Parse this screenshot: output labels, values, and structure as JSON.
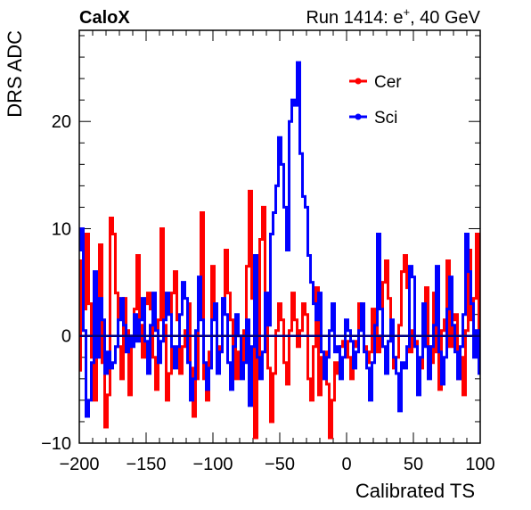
{
  "header": {
    "left_label": "CaloX",
    "right_label_prefix": "Run 1414: e",
    "right_label_sup": "+",
    "right_label_suffix": ", 40 GeV"
  },
  "chart_data": {
    "type": "line",
    "xlabel": "Calibrated TS",
    "ylabel": "DRS ADC",
    "xlim": [
      -200,
      100
    ],
    "ylim": [
      -10,
      28.5
    ],
    "x_ticks": [
      -200,
      -150,
      -100,
      -50,
      0,
      50,
      100
    ],
    "x_tick_labels": [
      "−200",
      "−150",
      "−100",
      "−50",
      "0",
      "50",
      "100"
    ],
    "y_ticks": [
      -10,
      0,
      10,
      20
    ],
    "y_tick_labels": [
      "−10",
      "0",
      "10",
      "20"
    ],
    "reference_line_y": 0,
    "legend_position": "top-right",
    "series": [
      {
        "name": "Cer",
        "color": "#ff0000",
        "step": true,
        "points": [
          [
            -200,
            -3.2
          ],
          [
            -198,
            7.0
          ],
          [
            -196,
            2.5
          ],
          [
            -194,
            9.5
          ],
          [
            -192,
            3.0
          ],
          [
            -190,
            -2.0
          ],
          [
            -188,
            -6.0
          ],
          [
            -186,
            1.0
          ],
          [
            -184,
            8.5
          ],
          [
            -182,
            -2.5
          ],
          [
            -180,
            -8.5
          ],
          [
            -178,
            -5.5
          ],
          [
            -176,
            11.0
          ],
          [
            -174,
            9.5
          ],
          [
            -172,
            4.0
          ],
          [
            -170,
            -1.0
          ],
          [
            -168,
            -4.0
          ],
          [
            -166,
            3.5
          ],
          [
            -164,
            0.5
          ],
          [
            -162,
            -5.5
          ],
          [
            -160,
            -0.5
          ],
          [
            -158,
            2.5
          ],
          [
            -156,
            7.5
          ],
          [
            -154,
            1.0
          ],
          [
            -152,
            -2.0
          ],
          [
            -150,
            3.0
          ],
          [
            -148,
            4.0
          ],
          [
            -146,
            2.5
          ],
          [
            -144,
            -2.0
          ],
          [
            -142,
            -5.0
          ],
          [
            -140,
            1.5
          ],
          [
            -138,
            10.0
          ],
          [
            -136,
            1.0
          ],
          [
            -134,
            -6.0
          ],
          [
            -132,
            -3.5
          ],
          [
            -130,
            4.0
          ],
          [
            -128,
            6.0
          ],
          [
            -126,
            1.5
          ],
          [
            -124,
            -3.5
          ],
          [
            -122,
            -1.0
          ],
          [
            -120,
            0.5
          ],
          [
            -118,
            3.0
          ],
          [
            -116,
            -3.0
          ],
          [
            -114,
            -7.5
          ],
          [
            -112,
            -4.0
          ],
          [
            -110,
            2.0
          ],
          [
            -108,
            11.5
          ],
          [
            -106,
            -4.0
          ],
          [
            -104,
            -6.0
          ],
          [
            -102,
            -1.5
          ],
          [
            -100,
            6.5
          ],
          [
            -98,
            2.0
          ],
          [
            -96,
            -2.5
          ],
          [
            -94,
            -1.0
          ],
          [
            -92,
            2.5
          ],
          [
            -90,
            8.0
          ],
          [
            -88,
            4.0
          ],
          [
            -86,
            1.5
          ],
          [
            -84,
            -1.0
          ],
          [
            -82,
            -4.0
          ],
          [
            -80,
            -1.5
          ],
          [
            -78,
            -3.5
          ],
          [
            -76,
            0.5
          ],
          [
            -74,
            6.5
          ],
          [
            -72,
            13.5
          ],
          [
            -70,
            3.5
          ],
          [
            -68,
            -9.5
          ],
          [
            -66,
            -2.0
          ],
          [
            -64,
            9.0
          ],
          [
            -62,
            12.0
          ],
          [
            -60,
            4.0
          ],
          [
            -58,
            -3.0
          ],
          [
            -56,
            -8.0
          ],
          [
            -54,
            -3.5
          ],
          [
            -52,
            0.5
          ],
          [
            -50,
            3.0
          ],
          [
            -48,
            1.5
          ],
          [
            -46,
            -2.5
          ],
          [
            -44,
            -4.5
          ],
          [
            -42,
            0.5
          ],
          [
            -40,
            4.0
          ],
          [
            -38,
            1.5
          ],
          [
            -36,
            -1.0
          ],
          [
            -34,
            0.5
          ],
          [
            -32,
            3.0
          ],
          [
            -30,
            2.0
          ],
          [
            -28,
            -4.0
          ],
          [
            -26,
            -6.0
          ],
          [
            -24,
            -1.0
          ],
          [
            -22,
            4.5
          ],
          [
            -20,
            -5.5
          ],
          [
            -18,
            -2.0
          ],
          [
            -16,
            -1.5
          ],
          [
            -14,
            -4.5
          ],
          [
            -12,
            -9.5
          ],
          [
            -10,
            -6.0
          ],
          [
            -8,
            -2.5
          ],
          [
            -6,
            -3.5
          ],
          [
            -4,
            -1.0
          ],
          [
            -2,
            -0.5
          ],
          [
            0,
            -0.5
          ],
          [
            2,
            -2.0
          ],
          [
            4,
            -4.0
          ],
          [
            6,
            -1.0
          ],
          [
            8,
            -0.5
          ],
          [
            10,
            3.0
          ],
          [
            12,
            2.0
          ],
          [
            14,
            -1.0
          ],
          [
            16,
            -2.5
          ],
          [
            18,
            -1.5
          ],
          [
            20,
            2.5
          ],
          [
            22,
            1.0
          ],
          [
            24,
            -1.5
          ],
          [
            26,
            0.0
          ],
          [
            28,
            5.0
          ],
          [
            30,
            7.0
          ],
          [
            32,
            3.5
          ],
          [
            34,
            0.5
          ],
          [
            36,
            -3.0
          ],
          [
            38,
            -2.0
          ],
          [
            40,
            1.0
          ],
          [
            42,
            6.0
          ],
          [
            44,
            7.5
          ],
          [
            46,
            4.5
          ],
          [
            48,
            -1.5
          ],
          [
            50,
            0.5
          ],
          [
            52,
            -0.5
          ],
          [
            54,
            -4.5
          ],
          [
            56,
            -3.0
          ],
          [
            58,
            -0.5
          ],
          [
            60,
            4.5
          ],
          [
            62,
            -1.0
          ],
          [
            64,
            -2.5
          ],
          [
            66,
            4.0
          ],
          [
            68,
            -1.5
          ],
          [
            70,
            -5.0
          ],
          [
            72,
            0.5
          ],
          [
            74,
            1.5
          ],
          [
            76,
            7.0
          ],
          [
            78,
            -1.0
          ],
          [
            80,
            1.5
          ],
          [
            82,
            2.0
          ],
          [
            84,
            -4.0
          ],
          [
            86,
            -2.0
          ],
          [
            88,
            -5.5
          ],
          [
            90,
            0.5
          ],
          [
            92,
            8.0
          ],
          [
            94,
            1.5
          ],
          [
            96,
            3.5
          ],
          [
            98,
            9.5
          ],
          [
            100,
            -1.5
          ]
        ]
      },
      {
        "name": "Sci",
        "color": "#0000ff",
        "step": true,
        "points": [
          [
            -200,
            8.0
          ],
          [
            -198,
            10.0
          ],
          [
            -196,
            0.5
          ],
          [
            -194,
            -7.5
          ],
          [
            -192,
            -6.0
          ],
          [
            -190,
            -2.5
          ],
          [
            -188,
            6.0
          ],
          [
            -186,
            -2.0
          ],
          [
            -184,
            3.5
          ],
          [
            -182,
            1.5
          ],
          [
            -180,
            -3.5
          ],
          [
            -178,
            -1.5
          ],
          [
            -176,
            -3.0
          ],
          [
            -174,
            -2.5
          ],
          [
            -172,
            -1.0
          ],
          [
            -170,
            1.5
          ],
          [
            -168,
            3.5
          ],
          [
            -166,
            1.0
          ],
          [
            -164,
            -1.5
          ],
          [
            -162,
            0.0
          ],
          [
            -160,
            -1.0
          ],
          [
            -158,
            2.0
          ],
          [
            -156,
            -0.5
          ],
          [
            -154,
            1.5
          ],
          [
            -152,
            3.5
          ],
          [
            -150,
            -0.5
          ],
          [
            -148,
            -3.5
          ],
          [
            -146,
            1.0
          ],
          [
            -144,
            4.0
          ],
          [
            -142,
            0.5
          ],
          [
            -140,
            -2.5
          ],
          [
            -138,
            -0.5
          ],
          [
            -136,
            1.5
          ],
          [
            -134,
            4.0
          ],
          [
            -132,
            2.0
          ],
          [
            -130,
            -1.0
          ],
          [
            -128,
            -3.0
          ],
          [
            -126,
            -1.0
          ],
          [
            -124,
            2.0
          ],
          [
            -122,
            5.0
          ],
          [
            -120,
            3.5
          ],
          [
            -118,
            -2.5
          ],
          [
            -116,
            -6.0
          ],
          [
            -114,
            -4.0
          ],
          [
            -112,
            0.5
          ],
          [
            -110,
            5.5
          ],
          [
            -108,
            1.5
          ],
          [
            -106,
            -2.5
          ],
          [
            -104,
            -5.0
          ],
          [
            -102,
            -3.0
          ],
          [
            -100,
            1.5
          ],
          [
            -98,
            3.0
          ],
          [
            -96,
            -3.5
          ],
          [
            -94,
            -1.5
          ],
          [
            -92,
            3.5
          ],
          [
            -90,
            2.0
          ],
          [
            -88,
            -2.5
          ],
          [
            -86,
            -5.0
          ],
          [
            -84,
            -1.0
          ],
          [
            -82,
            2.0
          ],
          [
            -80,
            0.0
          ],
          [
            -78,
            -4.0
          ],
          [
            -76,
            -2.5
          ],
          [
            -74,
            1.5
          ],
          [
            -72,
            -6.5
          ],
          [
            -70,
            -1.0
          ],
          [
            -68,
            7.5
          ],
          [
            -66,
            -2.0
          ],
          [
            -64,
            -4.0
          ],
          [
            -62,
            -1.5
          ],
          [
            -60,
            4.0
          ],
          [
            -58,
            1.0
          ],
          [
            -56,
            9.5
          ],
          [
            -54,
            11.5
          ],
          [
            -52,
            14.0
          ],
          [
            -50,
            18.5
          ],
          [
            -48,
            16.0
          ],
          [
            -46,
            12.0
          ],
          [
            -44,
            8.0
          ],
          [
            -42,
            20.0
          ],
          [
            -40,
            22.0
          ],
          [
            -38,
            21.5
          ],
          [
            -36,
            25.5
          ],
          [
            -34,
            17.0
          ],
          [
            -32,
            13.0
          ],
          [
            -30,
            12.0
          ],
          [
            -28,
            7.5
          ],
          [
            -26,
            5.0
          ],
          [
            -24,
            3.0
          ],
          [
            -22,
            1.5
          ],
          [
            -20,
            4.0
          ],
          [
            -18,
            -1.5
          ],
          [
            -16,
            -4.0
          ],
          [
            -14,
            -2.0
          ],
          [
            -12,
            0.5
          ],
          [
            -10,
            3.0
          ],
          [
            -8,
            -1.5
          ],
          [
            -6,
            -1.0
          ],
          [
            -4,
            -4.0
          ],
          [
            -2,
            -2.0
          ],
          [
            0,
            1.5
          ],
          [
            2,
            0.5
          ],
          [
            4,
            -0.5
          ],
          [
            6,
            -3.0
          ],
          [
            8,
            -1.5
          ],
          [
            10,
            0.5
          ],
          [
            12,
            3.0
          ],
          [
            14,
            -1.5
          ],
          [
            16,
            -3.0
          ],
          [
            18,
            -6.0
          ],
          [
            20,
            -2.5
          ],
          [
            22,
            1.0
          ],
          [
            24,
            9.5
          ],
          [
            26,
            2.5
          ],
          [
            28,
            -1.0
          ],
          [
            30,
            -3.5
          ],
          [
            32,
            -0.5
          ],
          [
            34,
            1.5
          ],
          [
            36,
            -2.0
          ],
          [
            38,
            -3.5
          ],
          [
            40,
            -7.0
          ],
          [
            42,
            -2.5
          ],
          [
            44,
            -3.0
          ],
          [
            46,
            -1.0
          ],
          [
            48,
            6.5
          ],
          [
            50,
            5.5
          ],
          [
            52,
            -1.0
          ],
          [
            54,
            -5.5
          ],
          [
            56,
            -2.0
          ],
          [
            58,
            3.0
          ],
          [
            60,
            -1.0
          ],
          [
            62,
            -4.0
          ],
          [
            64,
            -1.0
          ],
          [
            66,
            1.0
          ],
          [
            68,
            6.5
          ],
          [
            70,
            -1.5
          ],
          [
            72,
            -4.5
          ],
          [
            74,
            -2.0
          ],
          [
            76,
            2.5
          ],
          [
            78,
            5.5
          ],
          [
            80,
            1.0
          ],
          [
            82,
            -1.5
          ],
          [
            84,
            -4.0
          ],
          [
            86,
            -1.0
          ],
          [
            88,
            2.0
          ],
          [
            90,
            9.5
          ],
          [
            92,
            6.0
          ],
          [
            94,
            3.0
          ],
          [
            96,
            -2.0
          ],
          [
            98,
            0.5
          ],
          [
            100,
            -3.5
          ]
        ]
      }
    ]
  }
}
